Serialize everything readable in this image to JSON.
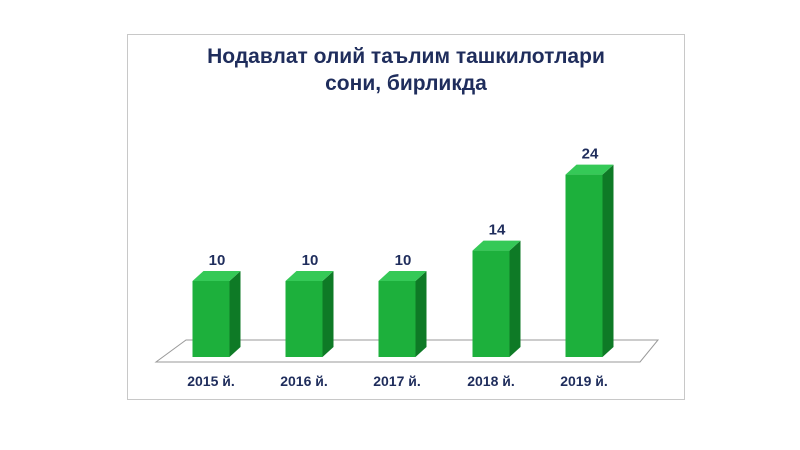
{
  "chart_data": {
    "type": "bar",
    "title_lines": [
      "Нодавлат олий таълим ташкилотлари",
      "сони, бирликда"
    ],
    "categories": [
      "2015 й.",
      "2016 й.",
      "2017 й.",
      "2018 й.",
      "2019 й."
    ],
    "values": [
      10,
      10,
      10,
      14,
      24
    ],
    "xlabel": "",
    "ylabel": "",
    "ylim": [
      0,
      27
    ],
    "grid": false,
    "legend": "none",
    "colors": {
      "bar_front": "#1db03c",
      "bar_side": "#0e7a26",
      "bar_top": "#35c957",
      "floor": "#ffffff",
      "floor_stroke": "#9a9a9a",
      "text": "#1f2d5c"
    }
  }
}
